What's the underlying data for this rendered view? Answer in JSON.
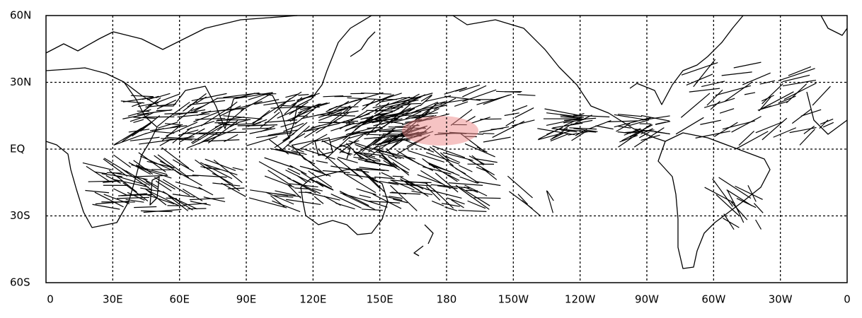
{
  "axes": {
    "x_labels": [
      "0",
      "30E",
      "60E",
      "90E",
      "120E",
      "150E",
      "180",
      "150W",
      "120W",
      "90W",
      "60W",
      "30W",
      "0"
    ],
    "y_labels": [
      "60N",
      "30N",
      "EQ",
      "30S",
      "60S"
    ]
  }
}
